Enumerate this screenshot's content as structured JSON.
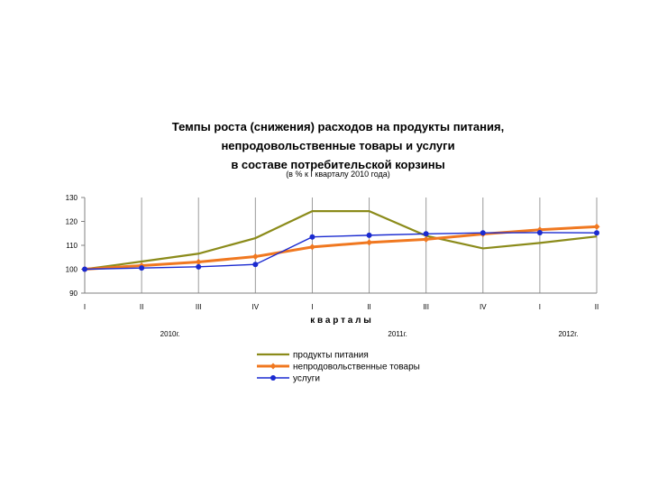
{
  "chart_data": {
    "type": "line",
    "title_lines": [
      "Темпы роста (снижения) расходов на продукты питания,",
      "непродовольственные товары и услуги",
      "в составе потребительской корзины"
    ],
    "subtitle": "(в % к I кварталу 2010 года)",
    "xlabel": "к в а р т а л ы",
    "categories": [
      "I",
      "II",
      "III",
      "IV",
      "I",
      "II",
      "III",
      "IV",
      "I",
      "II"
    ],
    "year_labels": [
      {
        "label": "2010г.",
        "category_index": 1.5
      },
      {
        "label": "2011г.",
        "category_index": 5.5
      },
      {
        "label": "2012г.",
        "category_index": 8.5
      }
    ],
    "ylim": [
      90,
      130
    ],
    "yticks": [
      90,
      100,
      110,
      120,
      130
    ],
    "grid": "vertical",
    "legend_position": "bottom",
    "series": [
      {
        "name": "продукты питания",
        "color": "#8b8b1a",
        "marker": "none",
        "values": [
          100,
          103.2,
          106.5,
          113,
          124.3,
          124.3,
          114,
          108.7,
          111,
          113.7
        ]
      },
      {
        "name": "непродовольственные товары",
        "color": "#f07820",
        "marker": "diamond",
        "values": [
          100,
          101.5,
          103,
          105.3,
          109.3,
          111.2,
          112.5,
          114.7,
          116.5,
          117.8
        ]
      },
      {
        "name": "услуги",
        "color": "#1a2ad0",
        "marker": "circle",
        "values": [
          100,
          100.5,
          101,
          102,
          113.5,
          114.2,
          114.8,
          115.2,
          115.3,
          115.2
        ]
      }
    ]
  }
}
